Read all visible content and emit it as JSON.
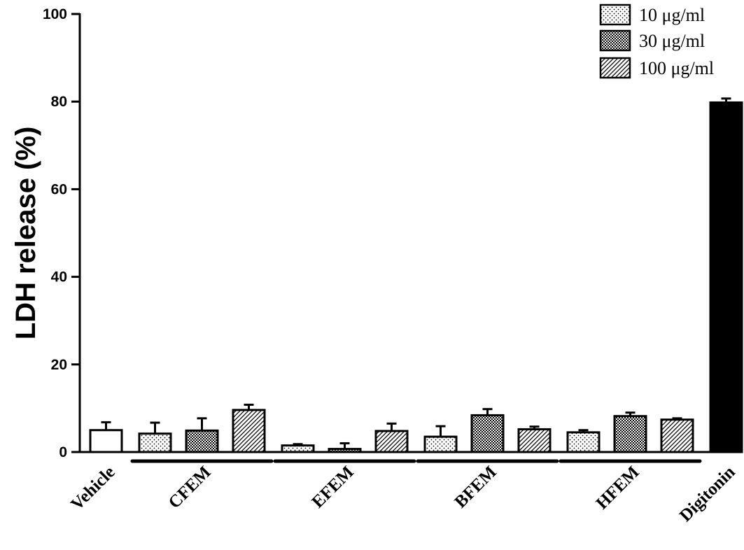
{
  "chart_data": {
    "type": "bar",
    "title": "",
    "xlabel": "",
    "ylabel": "LDH release (%)",
    "ylim": [
      0,
      100
    ],
    "yticks": [
      0,
      20,
      40,
      60,
      80,
      100
    ],
    "grid": false,
    "legend_position": "top-right",
    "series": [
      {
        "name": "10 μg/ml",
        "pattern": "dots"
      },
      {
        "name": "30 μg/ml",
        "pattern": "checker"
      },
      {
        "name": "100 μg/ml",
        "pattern": "hatch"
      }
    ],
    "groups": [
      {
        "label": "Vehicle",
        "bars": [
          {
            "value": 5.0,
            "error": 1.8,
            "fill": "white"
          }
        ]
      },
      {
        "label": "CFEM",
        "underline": true,
        "bars": [
          {
            "value": 4.2,
            "error": 2.5,
            "series": 0
          },
          {
            "value": 4.9,
            "error": 2.8,
            "series": 1
          },
          {
            "value": 9.6,
            "error": 1.2,
            "series": 2
          }
        ]
      },
      {
        "label": "EFEM",
        "underline": true,
        "bars": [
          {
            "value": 1.5,
            "error": 0.3,
            "series": 0
          },
          {
            "value": 0.7,
            "error": 1.3,
            "series": 1
          },
          {
            "value": 4.8,
            "error": 1.7,
            "series": 2
          }
        ]
      },
      {
        "label": "BFEM",
        "underline": true,
        "bars": [
          {
            "value": 3.5,
            "error": 2.4,
            "series": 0
          },
          {
            "value": 8.4,
            "error": 1.4,
            "series": 1
          },
          {
            "value": 5.2,
            "error": 0.6,
            "series": 2
          }
        ]
      },
      {
        "label": "HFEM",
        "underline": true,
        "bars": [
          {
            "value": 4.5,
            "error": 0.5,
            "series": 0
          },
          {
            "value": 8.2,
            "error": 0.8,
            "series": 1
          },
          {
            "value": 7.4,
            "error": 0.3,
            "series": 2
          }
        ]
      },
      {
        "label": "Digitonin",
        "bars": [
          {
            "value": 79.8,
            "error": 0.9,
            "fill": "black"
          }
        ]
      }
    ]
  }
}
